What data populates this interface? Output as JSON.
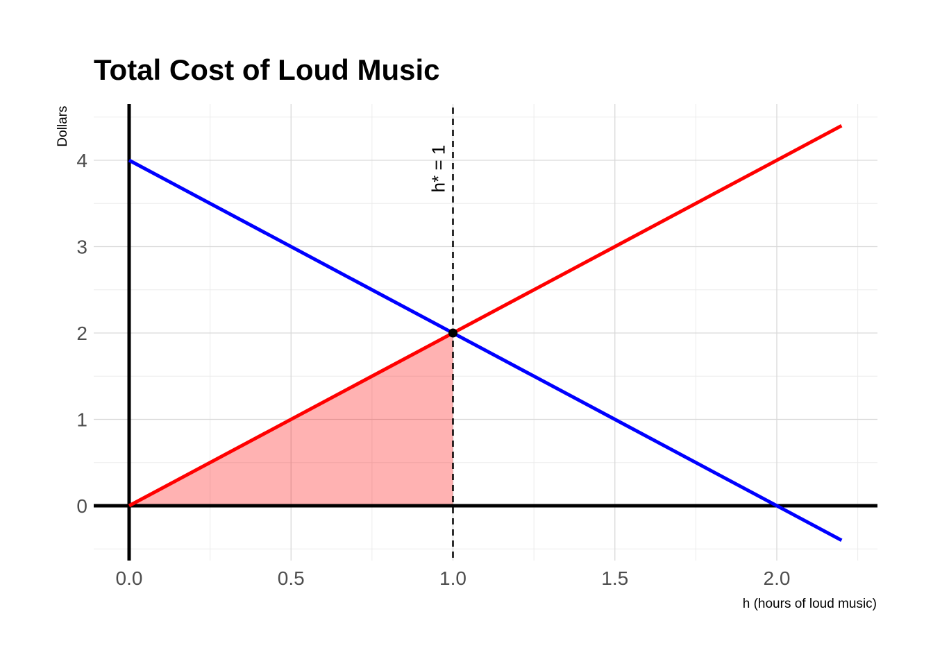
{
  "chart_data": {
    "type": "line",
    "title": "Total Cost of Loud Music",
    "xlabel": "h (hours of loud music)",
    "ylabel": "Dollars",
    "xlim": [
      -0.11,
      2.31
    ],
    "ylim": [
      -0.62,
      4.62
    ],
    "x_ticks": [
      "0.0",
      "0.5",
      "1.0",
      "1.5",
      "2.0"
    ],
    "x_tick_values": [
      0,
      0.5,
      1.0,
      1.5,
      2.0
    ],
    "y_ticks": [
      "0",
      "1",
      "2",
      "3",
      "4"
    ],
    "y_tick_values": [
      0,
      1,
      2,
      3,
      4
    ],
    "x_minor_grid": [
      0.25,
      0.75,
      1.25,
      1.75,
      2.25
    ],
    "y_minor_grid": [
      -0.5,
      0.5,
      1.5,
      2.5,
      3.5,
      4.5
    ],
    "grid": true,
    "legend": "none",
    "series": [
      {
        "color": "#0000ff",
        "x": [
          0,
          2.2
        ],
        "y": [
          4,
          -0.4
        ]
      },
      {
        "color": "#ff0000",
        "x": [
          0,
          2.2
        ],
        "y": [
          0,
          4.4
        ]
      }
    ],
    "shaded_area": {
      "color": "#ff0000",
      "opacity": 0.3,
      "x": [
        0,
        1,
        1
      ],
      "y": [
        0,
        2,
        0
      ]
    },
    "intersection_point": {
      "x": 1,
      "y": 2
    },
    "vline": {
      "x": 1,
      "style": "dashed",
      "label": "h* = 1"
    },
    "axis_lines": {
      "x_zero": true,
      "y_zero": true
    }
  }
}
